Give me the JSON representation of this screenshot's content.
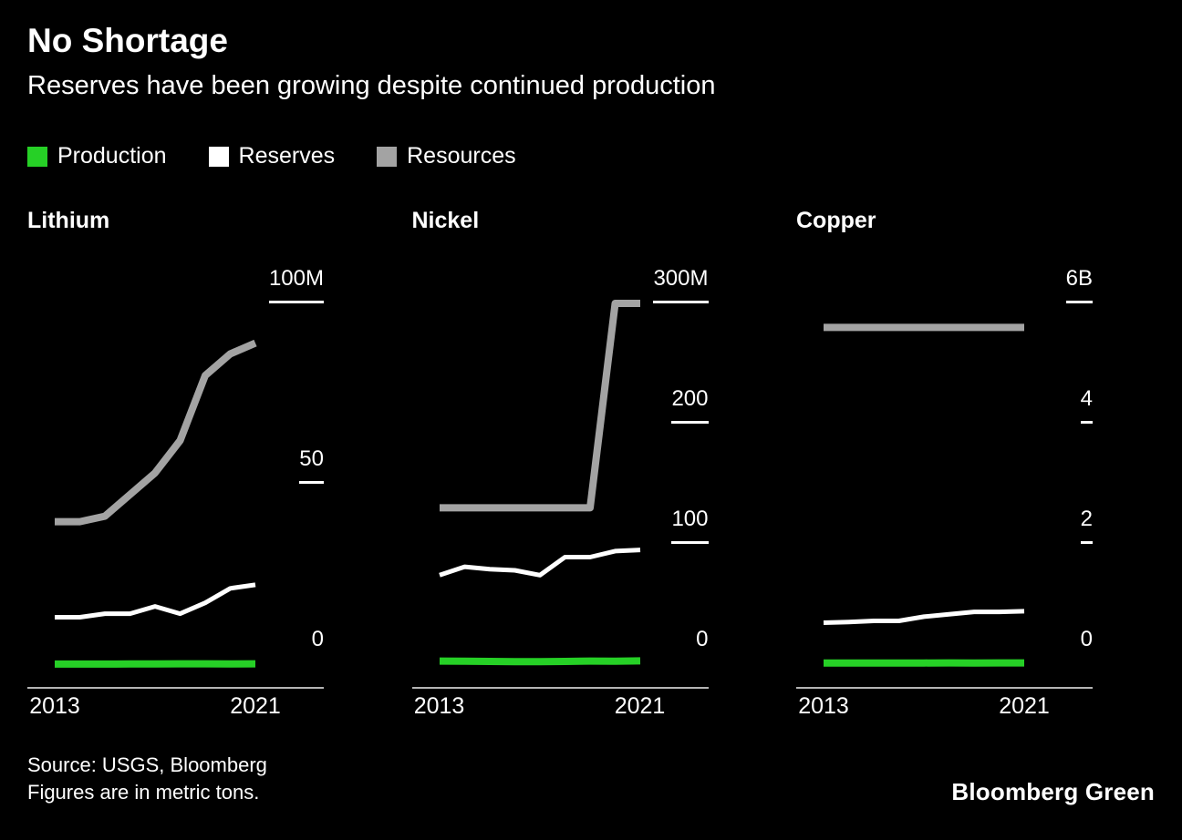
{
  "header": {
    "title": "No Shortage",
    "subtitle": "Reserves have been growing despite continued production"
  },
  "legend": [
    {
      "label": "Production",
      "color": "#26d026"
    },
    {
      "label": "Reserves",
      "color": "#ffffff"
    },
    {
      "label": "Resources",
      "color": "#a3a3a3"
    }
  ],
  "style": {
    "background": "#000000",
    "text_color": "#ffffff",
    "axis_color": "#f0f0f0",
    "production_green": "#26d026",
    "reserves_white": "#ffffff",
    "resources_gray": "#a3a3a3"
  },
  "footer": {
    "source_line1": "Source: USGS, Bloomberg",
    "source_line2": "Figures are in metric tons.",
    "brand": "Bloomberg Green"
  },
  "chart_data": [
    {
      "type": "line",
      "title": "Lithium",
      "unit": "million metric tons",
      "x": [
        2013,
        2014,
        2015,
        2016,
        2017,
        2018,
        2019,
        2020,
        2021
      ],
      "x_tick_labels": [
        "2013",
        "2021"
      ],
      "ylim": [
        0,
        100
      ],
      "grid": false,
      "legend_position": "top-shared",
      "yticks": [
        {
          "value": 0,
          "label": "0"
        },
        {
          "value": 50,
          "label": "50"
        },
        {
          "value": 100,
          "label": "100M"
        }
      ],
      "series": [
        {
          "name": "Production",
          "color": "#26d026",
          "stroke_width": 8,
          "values": [
            0.03,
            0.03,
            0.03,
            0.04,
            0.07,
            0.09,
            0.09,
            0.08,
            0.1
          ]
        },
        {
          "name": "Reserves",
          "color": "#ffffff",
          "stroke_width": 5,
          "values": [
            13,
            13,
            14,
            14,
            16,
            14,
            17,
            21,
            22
          ]
        },
        {
          "name": "Resources",
          "color": "#a3a3a3",
          "stroke_width": 8,
          "values": [
            39.5,
            39.5,
            41,
            47,
            53,
            62,
            80,
            86,
            89
          ]
        }
      ]
    },
    {
      "type": "line",
      "title": "Nickel",
      "unit": "million metric tons",
      "x": [
        2013,
        2014,
        2015,
        2016,
        2017,
        2018,
        2019,
        2020,
        2021
      ],
      "x_tick_labels": [
        "2013",
        "2021"
      ],
      "ylim": [
        0,
        300
      ],
      "grid": false,
      "legend_position": "top-shared",
      "yticks": [
        {
          "value": 0,
          "label": "0"
        },
        {
          "value": 100,
          "label": "100"
        },
        {
          "value": 200,
          "label": "200"
        },
        {
          "value": 300,
          "label": "300M"
        }
      ],
      "series": [
        {
          "name": "Production",
          "color": "#26d026",
          "stroke_width": 8,
          "values": [
            2.6,
            2.5,
            2.3,
            2.1,
            2.1,
            2.3,
            2.6,
            2.5,
            2.7
          ]
        },
        {
          "name": "Reserves",
          "color": "#ffffff",
          "stroke_width": 5,
          "values": [
            74,
            81,
            79,
            78,
            74,
            89,
            89,
            94,
            95
          ]
        },
        {
          "name": "Resources",
          "color": "#a3a3a3",
          "stroke_width": 8,
          "values": [
            130,
            130,
            130,
            130,
            130,
            130,
            130,
            300,
            300
          ]
        }
      ]
    },
    {
      "type": "line",
      "title": "Copper",
      "unit": "billion metric tons",
      "x": [
        2013,
        2014,
        2015,
        2016,
        2017,
        2018,
        2019,
        2020,
        2021
      ],
      "x_tick_labels": [
        "2013",
        "2021"
      ],
      "ylim": [
        0,
        6
      ],
      "grid": false,
      "legend_position": "top-shared",
      "yticks": [
        {
          "value": 0,
          "label": "0"
        },
        {
          "value": 2,
          "label": "2"
        },
        {
          "value": 4,
          "label": "4"
        },
        {
          "value": 6,
          "label": "6B"
        }
      ],
      "series": [
        {
          "name": "Production",
          "color": "#26d026",
          "stroke_width": 8,
          "values": [
            0.018,
            0.018,
            0.019,
            0.02,
            0.02,
            0.021,
            0.02,
            0.021,
            0.021
          ]
        },
        {
          "name": "Reserves",
          "color": "#ffffff",
          "stroke_width": 5,
          "values": [
            0.69,
            0.7,
            0.72,
            0.72,
            0.79,
            0.83,
            0.87,
            0.87,
            0.88
          ]
        },
        {
          "name": "Resources",
          "color": "#a3a3a3",
          "stroke_width": 8,
          "values": [
            5.6,
            5.6,
            5.6,
            5.6,
            5.6,
            5.6,
            5.6,
            5.6,
            5.6
          ]
        }
      ]
    }
  ]
}
